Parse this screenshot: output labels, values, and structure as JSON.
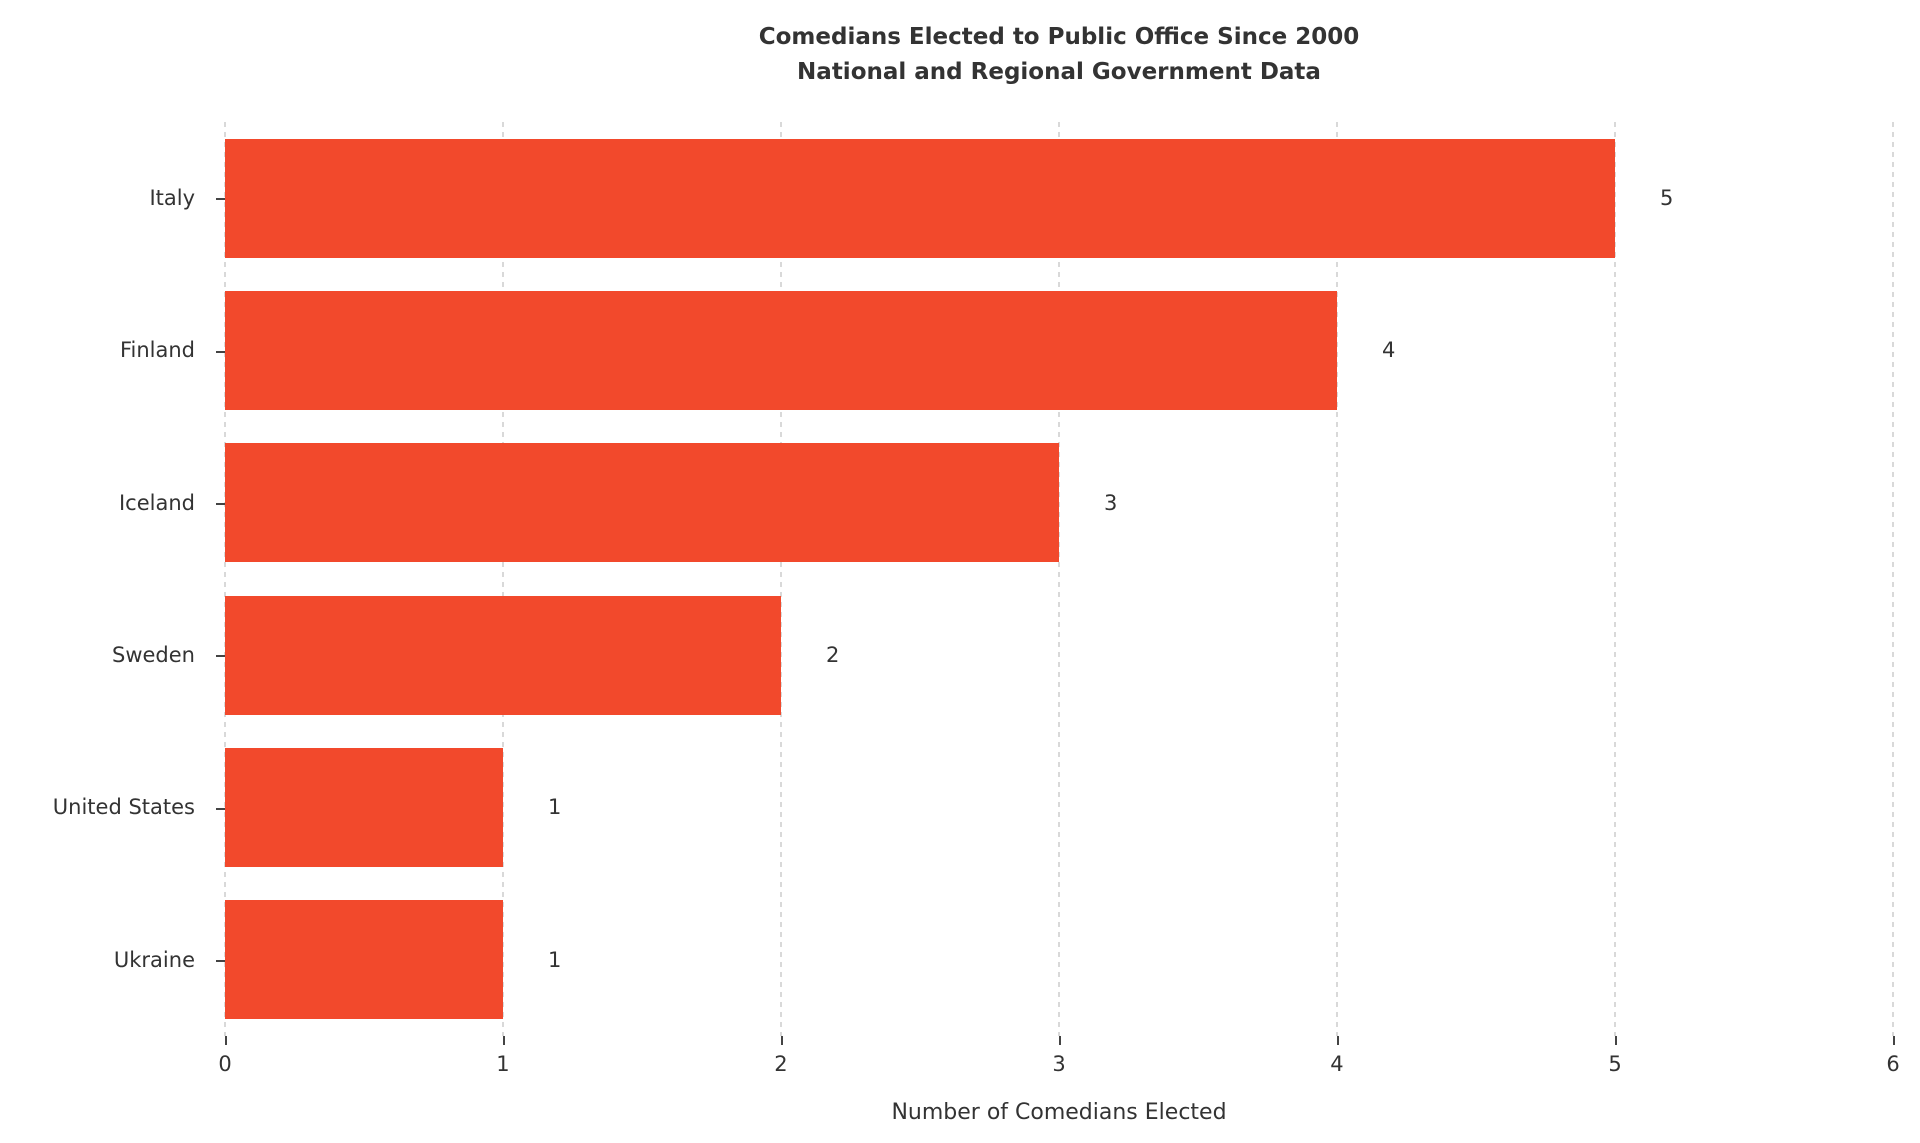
{
  "chart_data": {
    "type": "bar",
    "orientation": "horizontal",
    "title": "Comedians Elected to Public Office Since 2000\nNational and Regional Government Data",
    "categories": [
      "Italy",
      "Finland",
      "Iceland",
      "Sweden",
      "United States",
      "Ukraine"
    ],
    "values": [
      5,
      4,
      3,
      2,
      1,
      1
    ],
    "value_labels": [
      "5",
      "4",
      "3",
      "2",
      "1",
      "1"
    ],
    "xlabel": "Number of Comedians Elected",
    "xlim": [
      0,
      6
    ],
    "x_ticks": [
      0,
      1,
      2,
      3,
      4,
      5,
      6
    ],
    "bar_color": "#f2492c",
    "grid": "vertical-dashed",
    "legend": "none",
    "background_color": "#ffffff",
    "text_color": "#333333"
  }
}
